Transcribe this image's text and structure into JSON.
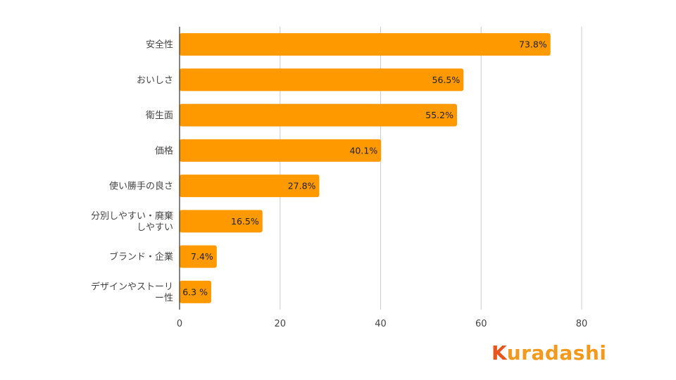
{
  "chart_data": {
    "type": "bar",
    "orientation": "horizontal",
    "categories": [
      [
        "安全性"
      ],
      [
        "おいしさ"
      ],
      [
        "衛生面"
      ],
      [
        "価格"
      ],
      [
        "使い勝手の良さ"
      ],
      [
        "分別しやすい・廃棄",
        "しやすい"
      ],
      [
        "ブランド・企業"
      ],
      [
        "デザインやストーリ",
        "ー性"
      ]
    ],
    "values": [
      73.8,
      56.5,
      55.2,
      40.1,
      27.8,
      16.5,
      7.4,
      6.3
    ],
    "data_labels": [
      "73.8%",
      "56.5%",
      "55.2%",
      "40.1%",
      "27.8%",
      "16.5%",
      "7.4%",
      "6.3 %"
    ],
    "xlim": [
      0,
      80
    ],
    "xticks": [
      0,
      20,
      40,
      60,
      80
    ],
    "grid": true,
    "bar_color": "#FF9900",
    "title": "",
    "xlabel": "",
    "ylabel": ""
  },
  "logo": {
    "text_prefix": "K",
    "text_rest": "uradashi",
    "prefix_color": "#E8541C",
    "rest_color": "#F39A1E"
  }
}
